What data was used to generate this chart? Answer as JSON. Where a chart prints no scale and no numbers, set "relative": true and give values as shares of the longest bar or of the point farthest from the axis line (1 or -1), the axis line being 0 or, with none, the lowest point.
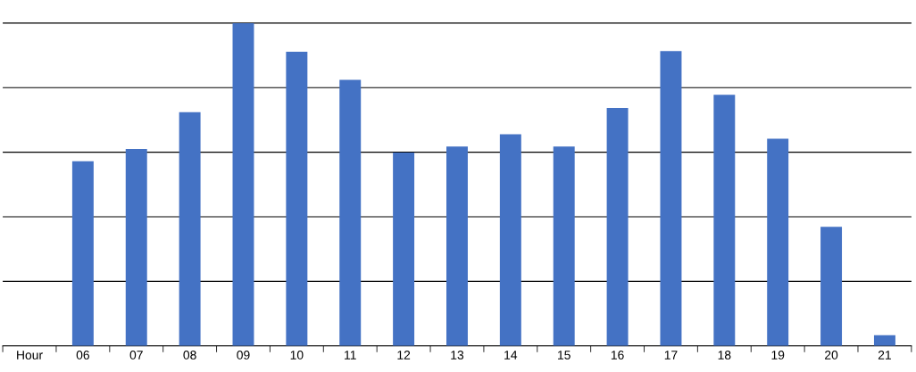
{
  "chart_data": {
    "type": "bar",
    "relative": true,
    "grid": "y",
    "color": "#4472c4",
    "categories": [
      "Hour",
      "06",
      "07",
      "08",
      "09",
      "10",
      "11",
      "12",
      "13",
      "14",
      "15",
      "16",
      "17",
      "18",
      "19",
      "20",
      "21"
    ],
    "values": [
      null,
      0.572,
      0.61,
      0.724,
      1,
      0.911,
      0.824,
      0.599,
      0.618,
      0.656,
      0.618,
      0.737,
      0.913,
      0.778,
      0.642,
      0.369,
      0.033
    ]
  }
}
